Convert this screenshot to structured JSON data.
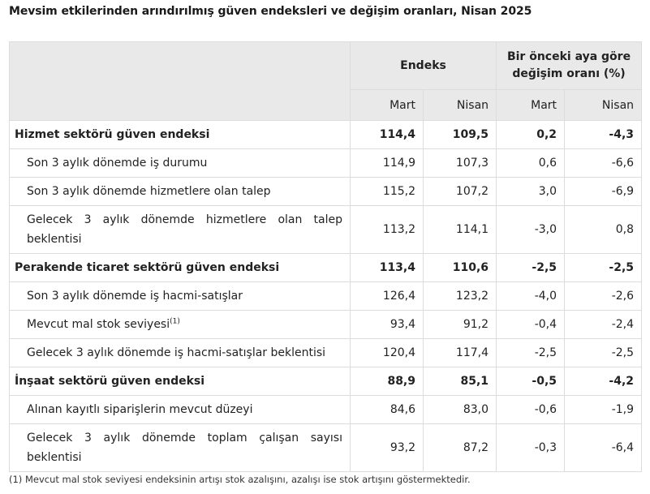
{
  "title": "Mevsim etkilerinden arındırılmış güven endeksleri ve değişim oranları, Nisan 2025",
  "header": {
    "group_index": "Endeks",
    "group_change_line1": "Bir önceki aya göre",
    "group_change_line2": "değişim oranı (%)",
    "sub_mart_index": "Mart",
    "sub_nisan_index": "Nisan",
    "sub_mart_change": "Mart",
    "sub_nisan_change": "Nisan"
  },
  "rows": [
    {
      "label": "Hizmet sektörü güven endeksi",
      "mart": "114,4",
      "nisan": "109,5",
      "chg_mart": "0,2",
      "chg_nisan": "-4,3"
    },
    {
      "label": "Son 3 aylık dönemde iş durumu",
      "mart": "114,9",
      "nisan": "107,3",
      "chg_mart": "0,6",
      "chg_nisan": "-6,6"
    },
    {
      "label": "Son 3 aylık dönemde hizmetlere olan talep",
      "mart": "115,2",
      "nisan": "107,2",
      "chg_mart": "3,0",
      "chg_nisan": "-6,9"
    },
    {
      "label": "Gelecek 3 aylık dönemde hizmetlere olan talep beklentisi",
      "mart": "113,2",
      "nisan": "114,1",
      "chg_mart": "-3,0",
      "chg_nisan": "0,8"
    },
    {
      "label": "Perakende ticaret sektörü güven endeksi",
      "mart": "113,4",
      "nisan": "110,6",
      "chg_mart": "-2,5",
      "chg_nisan": "-2,5"
    },
    {
      "label": "Son 3 aylık dönemde iş hacmi-satışlar",
      "mart": "126,4",
      "nisan": "123,2",
      "chg_mart": "-4,0",
      "chg_nisan": "-2,6"
    },
    {
      "label": "Mevcut mal stok seviyesi",
      "footnote_mark": "(1)",
      "mart": "93,4",
      "nisan": "91,2",
      "chg_mart": "-0,4",
      "chg_nisan": "-2,4"
    },
    {
      "label": "Gelecek 3 aylık dönemde iş hacmi-satışlar beklentisi",
      "mart": "120,4",
      "nisan": "117,4",
      "chg_mart": "-2,5",
      "chg_nisan": "-2,5"
    },
    {
      "label": "İnşaat sektörü güven endeksi",
      "mart": "88,9",
      "nisan": "85,1",
      "chg_mart": "-0,5",
      "chg_nisan": "-4,2"
    },
    {
      "label": "Alınan kayıtlı siparişlerin mevcut düzeyi",
      "mart": "84,6",
      "nisan": "83,0",
      "chg_mart": "-0,6",
      "chg_nisan": "-1,9"
    },
    {
      "label": "Gelecek 3 aylık dönemde toplam çalışan sayısı beklentisi",
      "mart": "93,2",
      "nisan": "87,2",
      "chg_mart": "-0,3",
      "chg_nisan": "-6,4"
    }
  ],
  "footnote": "(1) Mevcut mal stok seviyesi endeksinin artışı stok azalışını, azalışı ise stok artışını göstermektedir."
}
